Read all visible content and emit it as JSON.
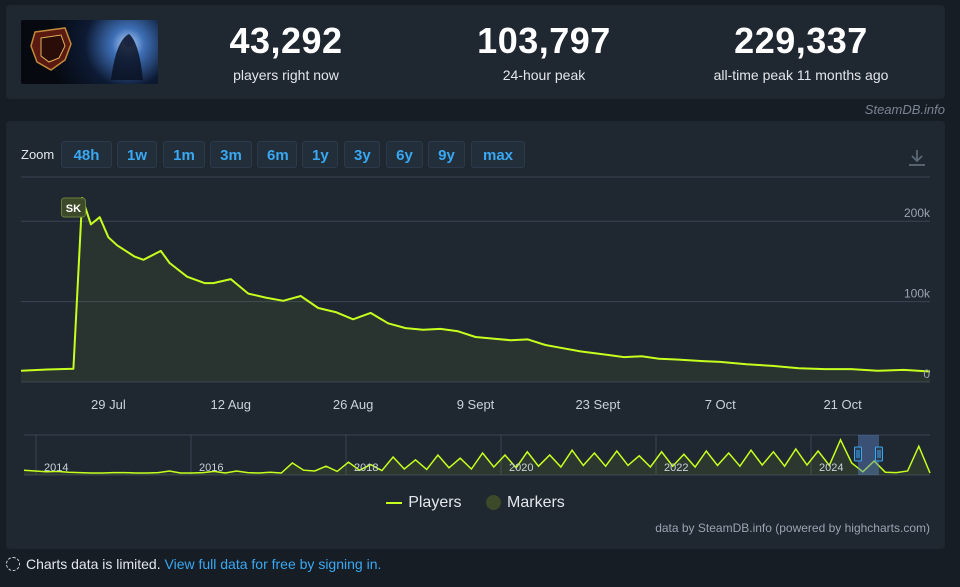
{
  "stats": [
    {
      "value": "43,292",
      "label": "players right now"
    },
    {
      "value": "103,797",
      "label": "24-hour peak"
    },
    {
      "value": "229,337",
      "label": "all-time peak 11 months ago"
    }
  ],
  "credit_top": "SteamDB.info",
  "game_thumb_icon": "game-capsule-image",
  "zoom": {
    "label": "Zoom",
    "buttons": [
      "48h",
      "1w",
      "1m",
      "3m",
      "6m",
      "1y",
      "3y",
      "6y",
      "9y",
      "max"
    ]
  },
  "download_icon": "download-icon",
  "legend": {
    "players": "Players",
    "markers": "Markers"
  },
  "credit_bottom": "data by SteamDB.info (powered by highcharts.com)",
  "footer": {
    "text": "Charts data is limited. ",
    "link": "View full data for free by signing in."
  },
  "colors": {
    "series": "#c6ff1e",
    "accent": "#39a8f2",
    "panel": "#1f2731",
    "background": "#171d25",
    "marker": "#3c4a2a"
  },
  "chart_data": {
    "type": "line",
    "series": [
      {
        "name": "Players",
        "x": [
          "2024-07-19",
          "2024-07-22",
          "2024-07-25",
          "2024-07-26",
          "2024-07-27",
          "2024-07-28",
          "2024-07-29",
          "2024-07-30",
          "2024-08-01",
          "2024-08-02",
          "2024-08-04",
          "2024-08-05",
          "2024-08-07",
          "2024-08-09",
          "2024-08-10",
          "2024-08-12",
          "2024-08-14",
          "2024-08-16",
          "2024-08-18",
          "2024-08-20",
          "2024-08-22",
          "2024-08-24",
          "2024-08-26",
          "2024-08-28",
          "2024-08-30",
          "2024-09-01",
          "2024-09-03",
          "2024-09-05",
          "2024-09-07",
          "2024-09-09",
          "2024-09-11",
          "2024-09-13",
          "2024-09-15",
          "2024-09-17",
          "2024-09-19",
          "2024-09-21",
          "2024-09-24",
          "2024-09-26",
          "2024-09-28",
          "2024-09-30",
          "2024-10-02",
          "2024-10-05",
          "2024-10-07",
          "2024-10-10",
          "2024-10-13",
          "2024-10-16",
          "2024-10-19",
          "2024-10-22",
          "2024-10-25",
          "2024-10-28",
          "2024-10-31"
        ],
        "values": [
          14000,
          15500,
          16500,
          229000,
          196000,
          205000,
          180000,
          170000,
          156000,
          152000,
          163000,
          148000,
          131000,
          123000,
          123000,
          128000,
          110000,
          105000,
          101000,
          107000,
          92000,
          87000,
          78000,
          86000,
          73000,
          67000,
          65000,
          66000,
          63000,
          56000,
          54000,
          52000,
          53000,
          46000,
          42000,
          38000,
          34000,
          31000,
          32000,
          29000,
          28000,
          26000,
          25000,
          22000,
          20000,
          17000,
          16000,
          16000,
          14000,
          15000,
          13000
        ]
      }
    ],
    "markers": [
      {
        "label": "SK",
        "x": "2024-07-25"
      }
    ],
    "x_tick_labels": [
      "29 Jul",
      "12 Aug",
      "26 Aug",
      "9 Sept",
      "23 Sept",
      "7 Oct",
      "21 Oct"
    ],
    "y_tick_labels": [
      "0",
      "100k",
      "200k"
    ],
    "ylim": [
      0,
      250000
    ],
    "grid": true,
    "legend_position": "bottom",
    "navigator": {
      "year_labels": [
        "2014",
        "2016",
        "2018",
        "2020",
        "2022",
        "2024"
      ],
      "values": [
        0.12,
        0.1,
        0.08,
        0.09,
        0.07,
        0.06,
        0.05,
        0.05,
        0.06,
        0.06,
        0.05,
        0.05,
        0.06,
        0.1,
        0.05,
        0.05,
        0.06,
        0.09,
        0.05,
        0.1,
        0.06,
        0.05,
        0.07,
        0.05,
        0.3,
        0.12,
        0.1,
        0.22,
        0.09,
        0.32,
        0.12,
        0.26,
        0.11,
        0.45,
        0.15,
        0.38,
        0.14,
        0.5,
        0.18,
        0.42,
        0.15,
        0.55,
        0.2,
        0.5,
        0.18,
        0.58,
        0.22,
        0.5,
        0.2,
        0.62,
        0.24,
        0.55,
        0.22,
        0.6,
        0.24,
        0.48,
        0.2,
        0.58,
        0.22,
        0.52,
        0.2,
        0.6,
        0.24,
        0.55,
        0.22,
        0.62,
        0.25,
        0.58,
        0.22,
        0.65,
        0.25,
        0.6,
        0.24,
        0.88,
        0.3,
        0.08,
        0.35,
        0.07,
        0.06,
        0.1,
        0.72,
        0.05
      ]
    }
  }
}
